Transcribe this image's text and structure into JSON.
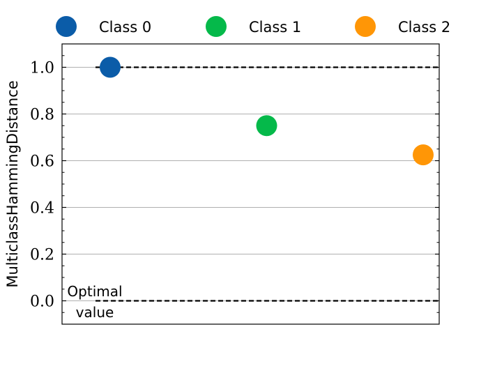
{
  "chart_data": {
    "type": "scatter",
    "title": "",
    "xlabel": "",
    "ylabel": "MulticlassHammingDistance",
    "ylim": [
      -0.1,
      1.1
    ],
    "y_ticks": [
      "0.0",
      "0.2",
      "0.4",
      "0.6",
      "0.8",
      "1.0"
    ],
    "y_tick_values": [
      0.0,
      0.2,
      0.4,
      0.6,
      0.8,
      1.0
    ],
    "grid": "horizontal",
    "legend_position": "top",
    "series": [
      {
        "name": "Class 0",
        "x": 0,
        "y": 1.0,
        "color": "#0b5ca8"
      },
      {
        "name": "Class 1",
        "x": 1,
        "y": 0.75,
        "color": "#05b94a"
      },
      {
        "name": "Class 2",
        "x": 2,
        "y": 0.625,
        "color": "#ff9606"
      }
    ],
    "reference_lines": [
      {
        "y": 1.0,
        "style": "dashed",
        "color": "#000000"
      },
      {
        "y": 0.0,
        "style": "dashed",
        "color": "#000000"
      }
    ],
    "annotation": {
      "line1": "Optimal",
      "line2": "value"
    }
  }
}
